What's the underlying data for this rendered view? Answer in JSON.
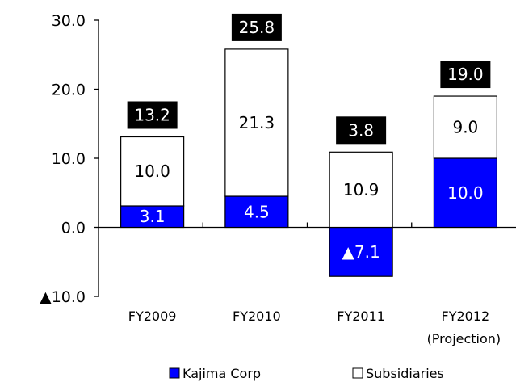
{
  "chart_data": {
    "type": "bar",
    "stacked": true,
    "categories": [
      "FY2009",
      "FY2010",
      "FY2011",
      "FY2012"
    ],
    "category_sublabels": [
      "",
      "",
      "",
      "(Projection)"
    ],
    "series": [
      {
        "name": "Kajima Corp",
        "values": [
          3.1,
          4.5,
          -7.1,
          10.0
        ],
        "value_labels": [
          "3.1",
          "4.5",
          "▲7.1",
          "10.0"
        ],
        "color": "#0000ff",
        "label_color": "#ffffff"
      },
      {
        "name": "Subsidiaries",
        "values": [
          10.0,
          21.3,
          10.9,
          9.0
        ],
        "value_labels": [
          "10.0",
          "21.3",
          "10.9",
          "9.0"
        ],
        "color": "#ffffff",
        "label_color": "#000000"
      }
    ],
    "totals": [
      "13.2",
      "25.8",
      "3.8",
      "19.0"
    ],
    "total_box_color": "#000000",
    "y_ticks": [
      {
        "value": 30,
        "label": "30.0"
      },
      {
        "value": 20,
        "label": "20.0"
      },
      {
        "value": 10,
        "label": "10.0"
      },
      {
        "value": 0,
        "label": "0.0"
      },
      {
        "value": -10,
        "label": "▲10.0"
      }
    ],
    "ylim": [
      -10,
      30
    ],
    "grid": false,
    "legend_position": "bottom"
  }
}
